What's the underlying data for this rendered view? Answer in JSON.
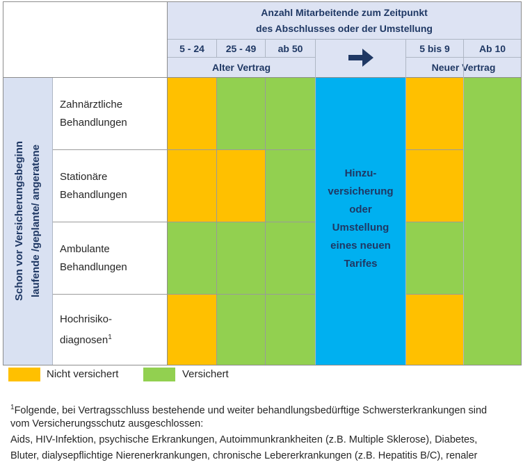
{
  "header": {
    "title_line1": "Anzahl Mitarbeitende zum Zeitpunkt",
    "title_line2": "des Abschlusses oder der Umstellung",
    "columns_old": [
      "5 - 24",
      "25 - 49",
      "ab 50"
    ],
    "columns_new": [
      "5 bis 9",
      "Ab 10"
    ],
    "old_contract": "Alter Vertrag",
    "new_contract": "Neuer Vertrag",
    "arrow_icon": "arrow-right-icon"
  },
  "sidebar": {
    "line1": "Schon vor Versicherungsbeginn",
    "line2": "laufende /geplante/ angeratene"
  },
  "rows": [
    {
      "line1": "Zahnärztliche",
      "line2": "Behandlungen",
      "sup": "",
      "old": [
        "nicht",
        "versichert",
        "versichert"
      ],
      "new": [
        "nicht"
      ]
    },
    {
      "line1": "Stationäre",
      "line2": "Behandlungen",
      "sup": "",
      "old": [
        "nicht",
        "nicht",
        "versichert"
      ],
      "new": [
        "nicht"
      ]
    },
    {
      "line1": "Ambulante",
      "line2": "Behandlungen",
      "sup": "",
      "old": [
        "versichert",
        "versichert",
        "versichert"
      ],
      "new": [
        "versichert"
      ]
    },
    {
      "line1": "Hochrisiko-",
      "line2": "diagnosen",
      "sup": "1",
      "old": [
        "nicht",
        "versichert",
        "versichert"
      ],
      "new": [
        "nicht"
      ]
    }
  ],
  "middle": [
    "Hinzu-",
    "versicherung",
    "oder",
    "Umstellung",
    "eines neuen",
    "Tarifes"
  ],
  "legend": {
    "not_insured": "Nicht versichert",
    "insured": "Versichert"
  },
  "colors": {
    "not_insured": "#ffc000",
    "insured": "#92d050",
    "middle": "#00b0f0",
    "header": "#dde3f3",
    "header_text": "#1f3864"
  },
  "footnote": {
    "sup": "1",
    "line1": "Folgende, bei Vertragsschluss bestehende und weiter behandlungsbedürftige Schwersterkrankungen sind",
    "line2": "vom Versicherungsschutz ausgeschlossen:",
    "line3": "Aids, HIV-Infektion, psychische Erkrankungen, Autoimmunkrankheiten (z.B. Multiple Sklerose), Diabetes,",
    "line4": "Bluter, dialysepflichtige Nierenerkrankungen, chronische Lebererkrankungen (z.B. Hepatitis B/C), renaler"
  }
}
